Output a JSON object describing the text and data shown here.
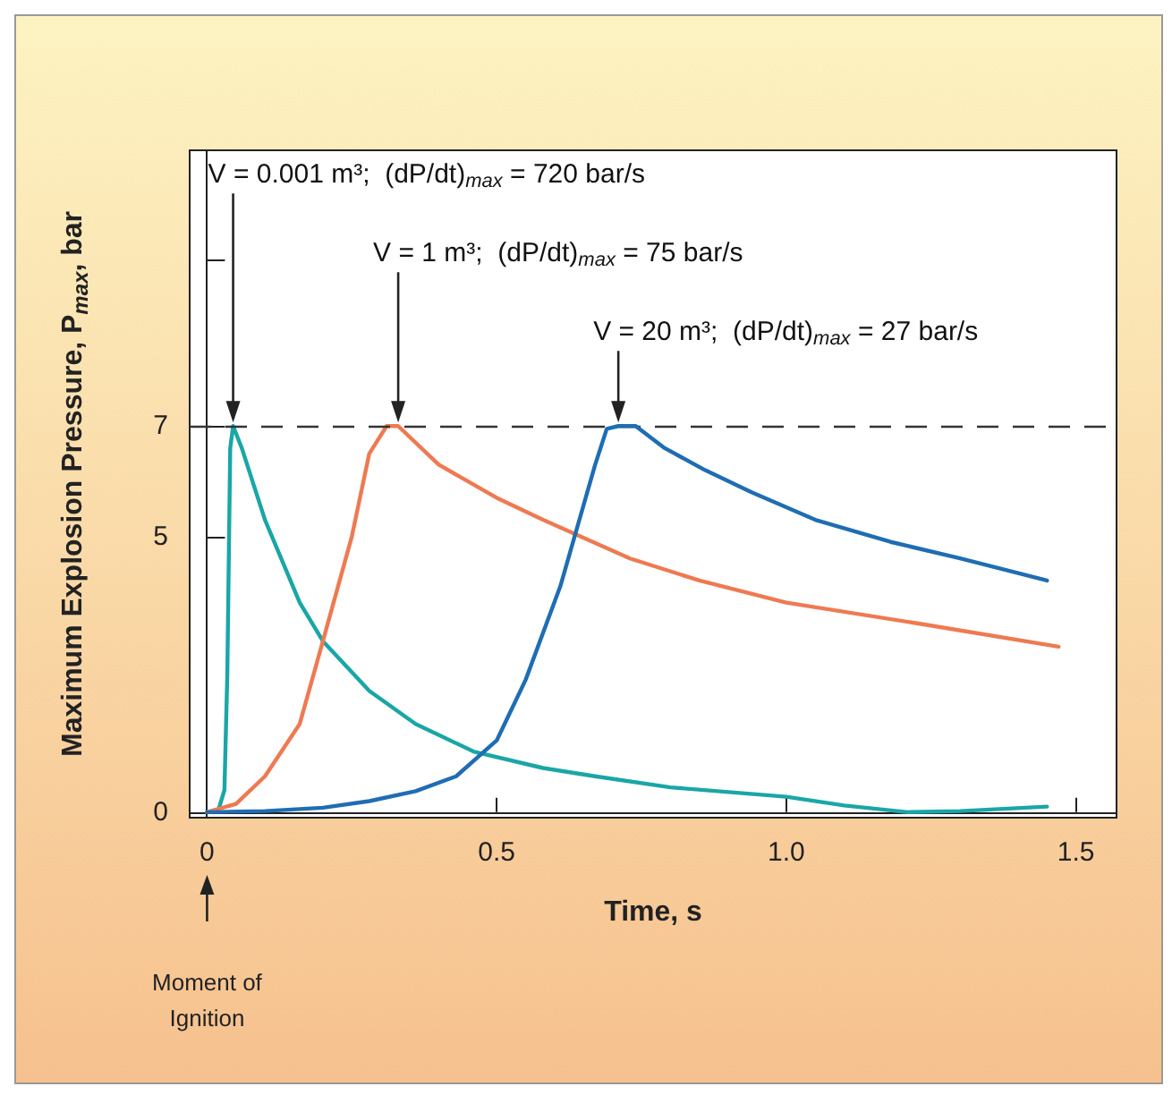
{
  "chart_data": {
    "type": "line",
    "xlabel": "Time, s",
    "ylabel": "Maximum Explosion Pressure, P$_{max}$, bar",
    "xlim": [
      -0.03,
      1.57
    ],
    "xticks": [
      {
        "value": 0,
        "label": "0"
      },
      0.5,
      {
        "value": 1,
        "label": "1.0"
      },
      1.5
    ],
    "ylim": [
      -0.1,
      12
    ],
    "yticks": [
      0,
      5,
      7,
      {
        "value": 10,
        "label": null
      }
    ],
    "grid": false,
    "marker": "none",
    "line_style": "solid",
    "ref_lines": [
      {
        "axis": "y",
        "value": 7,
        "color": "#333333",
        "line_style": "dashed"
      }
    ],
    "annotations": [
      {
        "text": "V = 0.001 m³;  (dP/dt)$_{max}$ = 720 bar/s",
        "x": 0.045,
        "y": 7
      },
      {
        "text": "V = 1 m³;  (dP/dt)$_{max}$ = 75 bar/s",
        "x": 0.33,
        "y": 7
      },
      {
        "text": "V = 20 m³;  (dP/dt)$_{max}$ = 27 bar/s",
        "x": 0.71,
        "y": 7
      },
      "Moment of\nIgnition"
    ],
    "series": [
      {
        "color": "#1aa6a6",
        "x": [
          0,
          0.02,
          0.03,
          0.035,
          0.04,
          0.045,
          0.06,
          0.1,
          0.16,
          0.2,
          0.28,
          0.36,
          0.46,
          0.58,
          0.67,
          0.8,
          1.0,
          1.1,
          1.21,
          1.3,
          1.45
        ],
        "values": [
          0,
          0.05,
          0.4,
          2.5,
          6.6,
          7,
          6.6,
          5.3,
          3.8,
          3.1,
          2.2,
          1.6,
          1.1,
          0.8,
          0.65,
          0.45,
          0.28,
          0.12,
          0,
          0.02,
          0.1
        ]
      },
      {
        "color": "#ee7a52",
        "x": [
          0,
          0.05,
          0.1,
          0.16,
          0.2,
          0.25,
          0.28,
          0.31,
          0.33,
          0.4,
          0.5,
          0.58,
          0.73,
          0.85,
          1.0,
          1.24,
          1.47
        ],
        "values": [
          0,
          0.15,
          0.65,
          1.6,
          3.1,
          5,
          6.5,
          7,
          7,
          6.3,
          5.7,
          5.3,
          4.6,
          4.2,
          3.8,
          3.4,
          3.0
        ]
      },
      {
        "color": "#1f6db3",
        "x": [
          0,
          0.1,
          0.2,
          0.28,
          0.36,
          0.43,
          0.5,
          0.55,
          0.61,
          0.67,
          0.69,
          0.71,
          0.74,
          0.79,
          0.86,
          0.94,
          1.05,
          1.18,
          1.3,
          1.45
        ],
        "values": [
          0,
          0.02,
          0.08,
          0.2,
          0.38,
          0.65,
          1.3,
          2.4,
          4.1,
          6.3,
          6.95,
          7,
          7,
          6.6,
          6.2,
          5.8,
          5.3,
          4.9,
          4.6,
          4.2
        ]
      }
    ]
  }
}
